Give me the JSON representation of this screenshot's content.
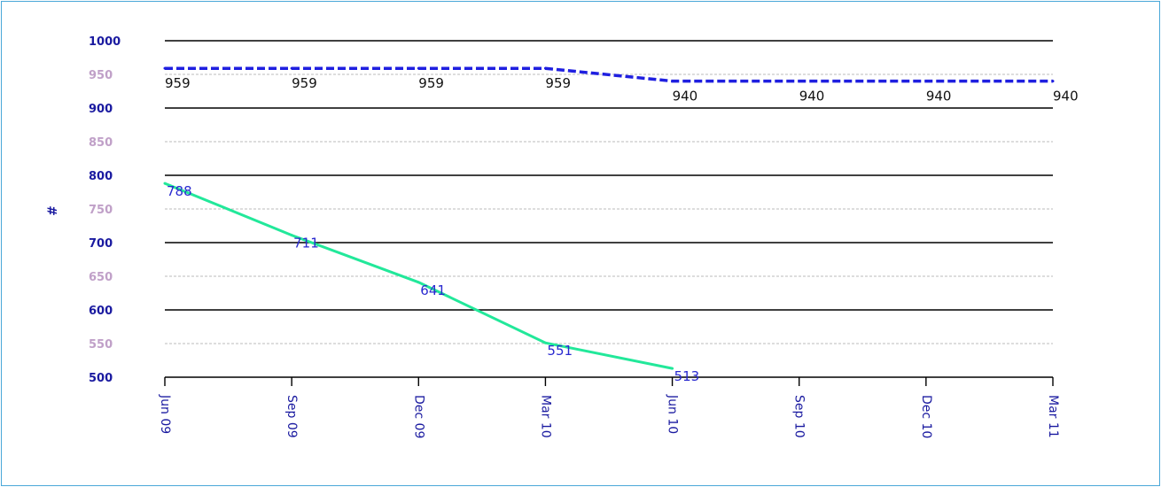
{
  "chart_data": {
    "type": "line",
    "ylabel": "#",
    "ylim": [
      500,
      1000
    ],
    "yticks": [
      1000,
      950,
      900,
      850,
      800,
      750,
      700,
      650,
      600,
      550,
      500
    ],
    "xticks": [
      "Jun 09",
      "Sep 09",
      "Dec 09",
      "Mar 10",
      "Jun 10",
      "Sep 10",
      "Dec 10",
      "Mar 11"
    ],
    "grid": true,
    "colors": {
      "major_tick_label": "#1a1aa0",
      "minor_tick_label": "#c0a0c8",
      "major_grid": "#000000",
      "minor_grid": "#bbbbbb"
    },
    "series": [
      {
        "style": "dashed",
        "color": "#1f1fe0",
        "label_color": "#111111",
        "points": [
          {
            "x": "2009-06",
            "y": 959
          },
          {
            "x": "2009-09",
            "y": 959
          },
          {
            "x": "2009-12",
            "y": 959
          },
          {
            "x": "2010-03",
            "y": 959
          },
          {
            "x": "2010-06",
            "y": 940
          },
          {
            "x": "2010-09",
            "y": 940
          },
          {
            "x": "2010-12",
            "y": 940
          },
          {
            "x": "2011-03",
            "y": 940
          }
        ],
        "labels": [
          "959",
          "959",
          "959",
          "959",
          "940",
          "940",
          "940",
          "940"
        ]
      },
      {
        "style": "solid",
        "color": "#22e89a",
        "label_color": "#2a2ad0",
        "points": [
          {
            "x": "2009-06",
            "y": 788
          },
          {
            "x": "2009-09",
            "y": 711
          },
          {
            "x": "2009-12",
            "y": 641
          },
          {
            "x": "2010-03",
            "y": 551
          },
          {
            "x": "2010-06",
            "y": 513
          }
        ],
        "labels": [
          "788",
          "711",
          "641",
          "551",
          "513"
        ]
      }
    ]
  }
}
